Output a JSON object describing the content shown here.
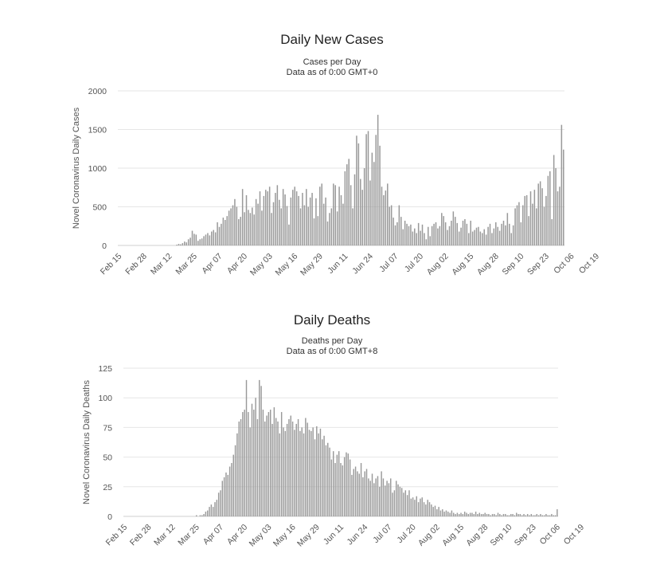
{
  "charts": [
    {
      "id": "cases",
      "title": "Daily New Cases",
      "subtitle1": "Cases per Day",
      "subtitle2": "Data as of 0:00 GMT+0",
      "chart_data": {
        "type": "bar",
        "title": "Daily New Cases",
        "subtitle": "Cases per Day / Data as of 0:00 GMT+0",
        "ylabel": "Novel Coronavirus Daily Cases",
        "xlabel": "",
        "ylim": [
          0,
          2000
        ],
        "yticks": [
          0,
          500,
          1000,
          1500,
          2000
        ],
        "x_tick_labels": [
          "Feb 15",
          "Feb 28",
          "Mar 12",
          "Mar 25",
          "Apr 07",
          "Apr 20",
          "May 03",
          "May 16",
          "May 29",
          "Jun 11",
          "Jun 24",
          "Jul 07",
          "Jul 20",
          "Aug 02",
          "Aug 15",
          "Aug 28",
          "Sep 10",
          "Sep 23",
          "Oct 06",
          "Oct 19"
        ],
        "grid": true,
        "bar_color": "#999999",
        "values": [
          0,
          0,
          0,
          0,
          0,
          0,
          0,
          0,
          0,
          0,
          0,
          0,
          0,
          0,
          0,
          0,
          0,
          0,
          0,
          0,
          0,
          0,
          0,
          0,
          0,
          0,
          0,
          0,
          0,
          0,
          10,
          20,
          15,
          30,
          50,
          40,
          80,
          100,
          190,
          150,
          140,
          60,
          80,
          90,
          120,
          140,
          160,
          130,
          180,
          200,
          170,
          300,
          240,
          280,
          360,
          330,
          380,
          450,
          480,
          520,
          600,
          500,
          340,
          370,
          730,
          430,
          650,
          460,
          420,
          490,
          400,
          600,
          540,
          700,
          450,
          640,
          720,
          700,
          760,
          420,
          560,
          680,
          780,
          590,
          480,
          730,
          660,
          510,
          270,
          620,
          720,
          760,
          700,
          640,
          480,
          680,
          520,
          730,
          500,
          620,
          680,
          350,
          610,
          380,
          760,
          800,
          540,
          620,
          310,
          420,
          480,
          800,
          780,
          440,
          760,
          650,
          540,
          960,
          1050,
          1120,
          780,
          480,
          920,
          1420,
          1320,
          860,
          720,
          1000,
          1440,
          1480,
          840,
          1200,
          1080,
          1430,
          1690,
          1290,
          760,
          650,
          710,
          800,
          500,
          520,
          360,
          260,
          300,
          520,
          370,
          210,
          320,
          280,
          250,
          270,
          180,
          220,
          160,
          290,
          190,
          270,
          160,
          80,
          240,
          120,
          250,
          280,
          300,
          220,
          250,
          420,
          380,
          300,
          200,
          250,
          320,
          440,
          370,
          290,
          180,
          230,
          320,
          340,
          280,
          160,
          320,
          180,
          200,
          230,
          240,
          180,
          160,
          210,
          140,
          240,
          280,
          160,
          220,
          300,
          240,
          190,
          280,
          320,
          260,
          420,
          280,
          160,
          260,
          480,
          520,
          560,
          300,
          520,
          640,
          650,
          380,
          700,
          540,
          720,
          480,
          800,
          830,
          740,
          500,
          640,
          900,
          960,
          340,
          1170,
          1000,
          700,
          760,
          1560,
          1240
        ]
      }
    },
    {
      "id": "deaths",
      "title": "Daily Deaths",
      "subtitle1": "Deaths per Day",
      "subtitle2": "Data as of 0:00 GMT+8",
      "chart_data": {
        "type": "bar",
        "title": "Daily Deaths",
        "subtitle": "Deaths per Day / Data as of 0:00 GMT+8",
        "ylabel": "Novel Coronavirus Daily Deaths",
        "xlabel": "",
        "ylim": [
          0,
          125
        ],
        "yticks": [
          0,
          25,
          50,
          75,
          100,
          125
        ],
        "x_tick_labels": [
          "Feb 15",
          "Feb 28",
          "Mar 12",
          "Mar 25",
          "Apr 07",
          "Apr 20",
          "May 03",
          "May 16",
          "May 29",
          "Jun 11",
          "Jun 24",
          "Jul 07",
          "Jul 20",
          "Aug 02",
          "Aug 15",
          "Aug 28",
          "Sep 10",
          "Sep 23",
          "Oct 06",
          "Oct 19"
        ],
        "grid": true,
        "bar_color": "#999999",
        "values": [
          0,
          0,
          0,
          0,
          0,
          0,
          0,
          0,
          0,
          0,
          0,
          0,
          0,
          0,
          0,
          0,
          0,
          0,
          0,
          0,
          0,
          0,
          0,
          0,
          0,
          0,
          0,
          0,
          0,
          0,
          0,
          0,
          0,
          0,
          0,
          0,
          0,
          0,
          0,
          1,
          0,
          1,
          1,
          2,
          4,
          5,
          8,
          10,
          8,
          12,
          14,
          20,
          22,
          30,
          33,
          37,
          35,
          42,
          45,
          52,
          60,
          70,
          80,
          82,
          88,
          90,
          115,
          88,
          75,
          95,
          90,
          100,
          82,
          115,
          110,
          90,
          80,
          85,
          88,
          90,
          78,
          92,
          83,
          80,
          70,
          88,
          75,
          72,
          78,
          82,
          85,
          80,
          73,
          78,
          82,
          72,
          75,
          70,
          83,
          79,
          73,
          72,
          75,
          65,
          76,
          70,
          74,
          65,
          68,
          60,
          62,
          58,
          48,
          55,
          45,
          52,
          55,
          45,
          43,
          50,
          54,
          53,
          48,
          35,
          40,
          42,
          38,
          36,
          45,
          33,
          38,
          40,
          32,
          30,
          36,
          28,
          32,
          34,
          25,
          38,
          32,
          26,
          30,
          28,
          32,
          20,
          22,
          30,
          27,
          25,
          24,
          20,
          22,
          18,
          22,
          15,
          16,
          14,
          17,
          12,
          15,
          16,
          12,
          10,
          14,
          12,
          10,
          8,
          9,
          6,
          8,
          5,
          6,
          4,
          5,
          4,
          3,
          5,
          3,
          2,
          3,
          2,
          3,
          2,
          4,
          3,
          2,
          3,
          3,
          2,
          4,
          2,
          3,
          2,
          2,
          3,
          2,
          2,
          1,
          2,
          2,
          1,
          3,
          2,
          1,
          2,
          2,
          1,
          1,
          2,
          2,
          1,
          3,
          2,
          2,
          1,
          2,
          1,
          2,
          1,
          2,
          1,
          1,
          2,
          1,
          2,
          1,
          1,
          2,
          1,
          1,
          2,
          1,
          1,
          6
        ]
      }
    }
  ]
}
